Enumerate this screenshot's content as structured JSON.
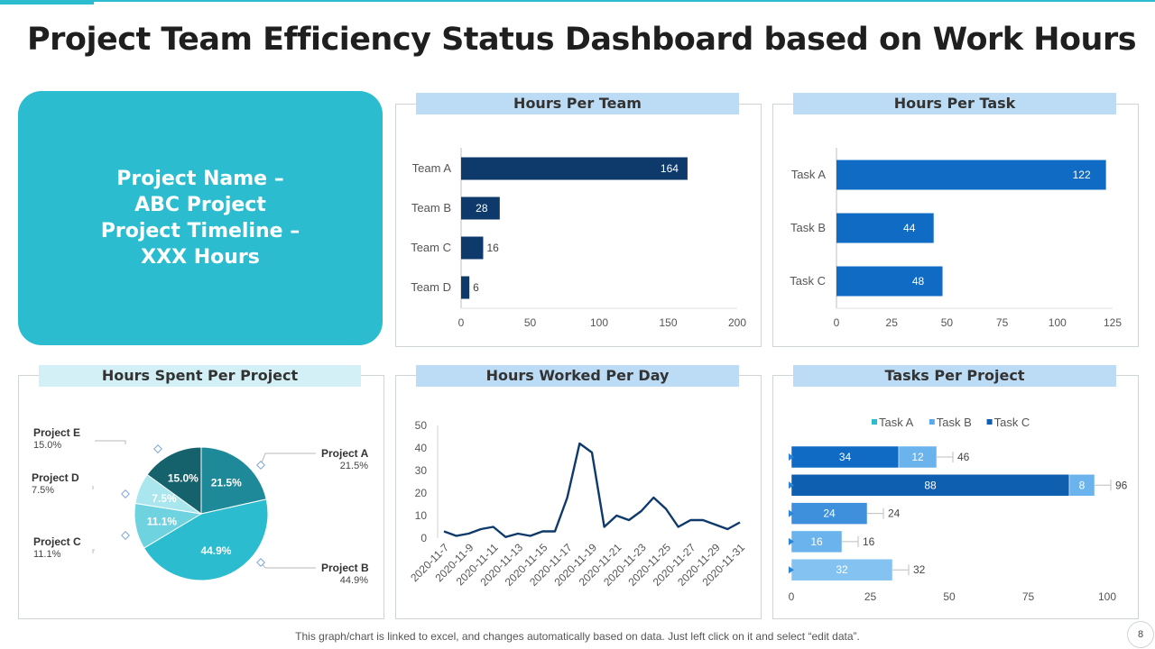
{
  "page": {
    "title": "Project Team Efficiency Status Dashboard based on Work Hours",
    "hero_lines": [
      "Project Name –",
      "ABC Project",
      "Project Timeline –",
      "XXX Hours"
    ],
    "footnote": "This graph/chart is linked to excel, and changes automatically based on data. Just left click on it and select “edit data”.",
    "page_number": "8",
    "colors": {
      "accent": "#2bbccf",
      "navy": "#0e3a6b",
      "blue": "#0f6bc4",
      "light_blue": "#bcdcf5"
    }
  },
  "chart_data": [
    {
      "id": "team",
      "type": "bar",
      "orientation": "horizontal",
      "title": "Hours Per Team",
      "categories": [
        "Team A",
        "Team B",
        "Team C",
        "Team D"
      ],
      "values": [
        164,
        28,
        16,
        6
      ],
      "xlim": [
        0,
        200
      ],
      "xticks": [
        0,
        50,
        100,
        150,
        200
      ],
      "color": "#0e3a6b"
    },
    {
      "id": "task",
      "type": "bar",
      "orientation": "horizontal",
      "title": "Hours Per Task",
      "categories": [
        "Task A",
        "Task B",
        "Task C"
      ],
      "values": [
        122,
        44,
        48
      ],
      "xlim": [
        0,
        125
      ],
      "xticks": [
        0,
        25,
        50,
        75,
        100,
        125
      ],
      "color": "#0f6bc4"
    },
    {
      "id": "project_pie",
      "type": "pie",
      "title": "Hours Spent Per Project",
      "slices": [
        {
          "name": "Project A",
          "value": 21.5,
          "label": "21.5%",
          "color": "#1e8a99"
        },
        {
          "name": "Project B",
          "value": 44.9,
          "label": "44.9%",
          "color": "#2bbccf"
        },
        {
          "name": "Project C",
          "value": 11.1,
          "label": "11.1%",
          "color": "#6fd2df"
        },
        {
          "name": "Project D",
          "value": 7.5,
          "label": "7.5%",
          "color": "#a9e6ee"
        },
        {
          "name": "Project E",
          "value": 15.0,
          "label": "15.0%",
          "color": "#15616c"
        }
      ]
    },
    {
      "id": "daily",
      "type": "line",
      "title": "Hours Worked Per Day",
      "x": [
        "2020-11-7",
        "2020-11-8",
        "2020-11-9",
        "2020-11-10",
        "2020-11-11",
        "2020-11-12",
        "2020-11-13",
        "2020-11-14",
        "2020-11-15",
        "2020-11-16",
        "2020-11-17",
        "2020-11-18",
        "2020-11-19",
        "2020-11-20",
        "2020-11-21",
        "2020-11-22",
        "2020-11-23",
        "2020-11-24",
        "2020-11-25",
        "2020-11-26",
        "2020-11-27",
        "2020-11-28",
        "2020-11-29",
        "2020-11-30",
        "2020-11-31"
      ],
      "xtick_labels": [
        "2020-11-7",
        "2020-11-9",
        "2020-11-11",
        "2020-11-13",
        "2020-11-15",
        "2020-11-17",
        "2020-11-19",
        "2020-11-21",
        "2020-11-23",
        "2020-11-25",
        "2020-11-27",
        "2020-11-29",
        "2020-11-31"
      ],
      "values": [
        3,
        1,
        2,
        4,
        5,
        0.5,
        2,
        1,
        3,
        3,
        18,
        42,
        38,
        5,
        10,
        8,
        12,
        18,
        13,
        5,
        8,
        8,
        6,
        4,
        7
      ],
      "ylim": [
        0,
        50
      ],
      "yticks": [
        0,
        10,
        20,
        30,
        40,
        50
      ],
      "color": "#0e3a6b"
    },
    {
      "id": "tasks_per_project",
      "type": "bar",
      "orientation": "horizontal",
      "stacked": true,
      "title": "Tasks Per Project",
      "series": [
        {
          "name": "Task A",
          "color": "#2bbccf"
        },
        {
          "name": "Task B",
          "color": "#5aa9e8"
        },
        {
          "name": "Task C",
          "color": "#0f5fb0"
        }
      ],
      "rows": [
        {
          "segments": [
            {
              "value": 34,
              "color": "#0f6bc4"
            },
            {
              "value": 12,
              "color": "#6ab3ec"
            }
          ],
          "total": 46
        },
        {
          "segments": [
            {
              "value": 88,
              "color": "#0f5fb0"
            },
            {
              "value": 8,
              "color": "#6ab3ec"
            }
          ],
          "total": 96
        },
        {
          "segments": [
            {
              "value": 24,
              "color": "#3e8fdc"
            }
          ],
          "total": 24
        },
        {
          "segments": [
            {
              "value": 16,
              "color": "#6ab3ec"
            }
          ],
          "total": 16
        },
        {
          "segments": [
            {
              "value": 32,
              "color": "#84c2f2"
            }
          ],
          "total": 32
        }
      ],
      "xlim": [
        0,
        100
      ],
      "xticks": [
        0,
        25,
        50,
        75,
        100
      ]
    }
  ]
}
